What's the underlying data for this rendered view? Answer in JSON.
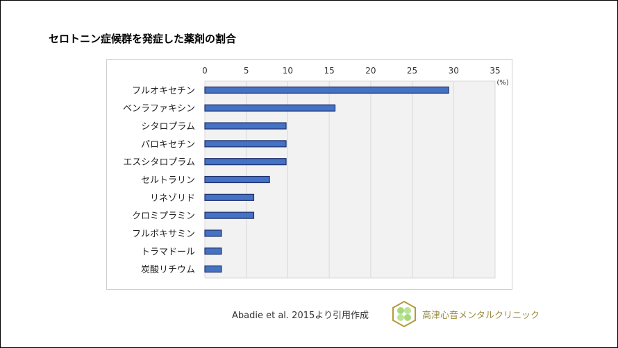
{
  "title": "セロトニン症候群を発症した薬剤の割合",
  "source": "Abadie et al. 2015より引用作成",
  "clinic_name": "高津心音メンタルクリニック",
  "colors": {
    "bar_fill": "#4472c4",
    "bar_stroke": "#1f2f6b",
    "plot_bg": "#f2f2f2",
    "grid": "#d9d9d9",
    "clinic_text": "#9a8a3a"
  },
  "chart_data": {
    "type": "bar",
    "orientation": "horizontal",
    "categories": [
      "フルオキセチン",
      "ベンラファキシン",
      "シタロプラム",
      "パロキセチン",
      "エスシタロプラム",
      "セルトラリン",
      "リネゾリド",
      "クロミプラミン",
      "フルボキサミン",
      "トラマドール",
      "炭酸リチウム"
    ],
    "values": [
      29.4,
      15.7,
      9.8,
      9.8,
      9.8,
      7.8,
      5.9,
      5.9,
      2.0,
      2.0,
      2.0
    ],
    "xlim": [
      0,
      35
    ],
    "xticks": [
      0,
      5,
      10,
      15,
      20,
      25,
      30,
      35
    ],
    "xaxis_position": "top",
    "unit_label": "(%)",
    "grid": true
  }
}
